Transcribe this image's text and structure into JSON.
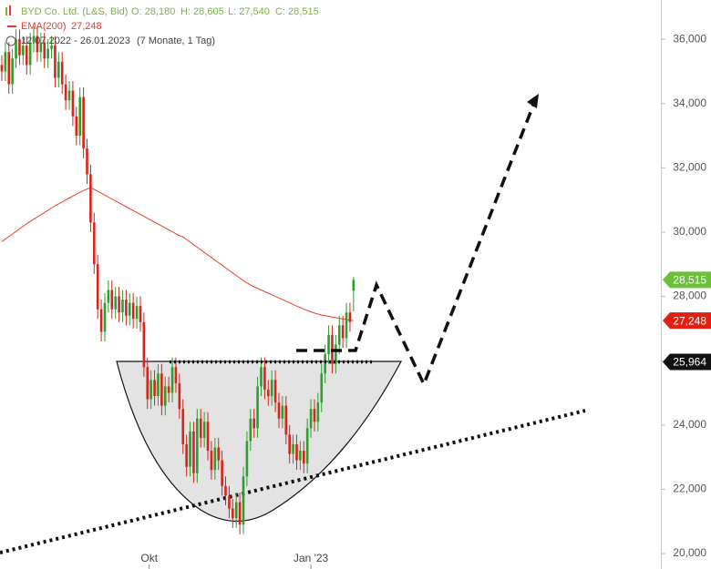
{
  "chart_data": {
    "type": "candlestick",
    "header": {
      "name": "BYD Co. Ltd. (L&S, Bid)",
      "ohlc_labels": [
        "O: 28,180",
        "H: 28,605",
        "L: 27,540",
        "C: 28,515"
      ],
      "ema_name": "EMA(200)",
      "ema_label": "27,248",
      "period": "12.07.2022 - 26.01.2023",
      "interval": "(7 Monate, 1 Tag)"
    },
    "up_color": "#2e9e2e",
    "down_color": "#d9241c",
    "ema_color": "#e8402a",
    "open": [
      35200,
      35000,
      35600,
      34600,
      35400,
      36000,
      35500,
      35800,
      35200,
      35900,
      36100,
      35600,
      35900,
      35400,
      35700,
      35800,
      34800,
      35300,
      34600,
      34100,
      34400,
      33600,
      33000,
      34200,
      32600,
      31800,
      30300,
      29000,
      27600,
      26900,
      27800,
      28200,
      27600,
      28000,
      27500,
      27900,
      27400,
      27800,
      27300,
      27700,
      27200,
      25800,
      24800,
      25400,
      24900,
      25600,
      24600,
      25200,
      25000,
      25800,
      25300,
      24500,
      23400,
      22700,
      23800,
      22500,
      24200,
      23600,
      24100,
      23200,
      22600,
      23300,
      22900,
      22100,
      21800,
      21400,
      21100,
      21600,
      20900,
      22400,
      23500,
      24200,
      23900,
      25200,
      25800,
      25100,
      24900,
      25400,
      24700,
      24200,
      24600,
      23700,
      23100,
      23400,
      22900,
      23200,
      22800,
      23900,
      24500,
      24100,
      24700,
      25600,
      26200,
      26800,
      25900,
      26500,
      27100,
      26700,
      27500,
      28180
    ],
    "high": [
      35500,
      35900,
      35900,
      35700,
      36300,
      36300,
      36100,
      36100,
      36200,
      36400,
      36400,
      36200,
      36200,
      36000,
      36100,
      36100,
      35600,
      35600,
      34900,
      34700,
      34700,
      33900,
      34500,
      34500,
      32900,
      32100,
      30600,
      29300,
      27900,
      28100,
      28500,
      28500,
      28300,
      28300,
      28200,
      28200,
      28100,
      28100,
      28000,
      28000,
      27500,
      26100,
      25700,
      25700,
      25900,
      25900,
      25500,
      25500,
      26100,
      26100,
      25600,
      24800,
      23700,
      24100,
      24100,
      24500,
      24500,
      24400,
      24400,
      23500,
      23600,
      23600,
      23200,
      22400,
      22100,
      21700,
      21900,
      21900,
      22700,
      23800,
      24500,
      24500,
      25500,
      26100,
      26100,
      25400,
      25700,
      25700,
      25000,
      24900,
      24900,
      24000,
      23700,
      23700,
      23500,
      23500,
      24200,
      24800,
      24800,
      25000,
      25900,
      26500,
      27100,
      27100,
      26800,
      27400,
      27400,
      27800,
      27800,
      28605
    ],
    "low": [
      34700,
      34700,
      34300,
      34300,
      35100,
      35200,
      35200,
      34900,
      34900,
      35600,
      35300,
      35300,
      35100,
      35100,
      35400,
      34500,
      34500,
      34300,
      33800,
      33800,
      33300,
      32700,
      32700,
      32300,
      31500,
      30000,
      28700,
      27300,
      26600,
      26600,
      27500,
      27300,
      27300,
      27200,
      27200,
      27100,
      27100,
      27000,
      27000,
      26900,
      25500,
      24500,
      24500,
      24600,
      24600,
      24300,
      24300,
      24700,
      24700,
      25000,
      24200,
      23100,
      22400,
      22400,
      22200,
      22200,
      23300,
      23300,
      22900,
      22300,
      22300,
      22600,
      21800,
      21500,
      21100,
      20800,
      20800,
      20600,
      20600,
      22100,
      23200,
      23600,
      23600,
      24900,
      24800,
      24600,
      24600,
      24400,
      23900,
      23900,
      23400,
      22800,
      22800,
      22600,
      22600,
      22500,
      22500,
      23600,
      23800,
      23800,
      24400,
      25300,
      25900,
      25600,
      25600,
      26200,
      26400,
      26400,
      26900,
      27540
    ],
    "close": [
      35000,
      35600,
      34600,
      35400,
      36000,
      35500,
      35800,
      35200,
      35900,
      36100,
      35600,
      35900,
      35400,
      35700,
      35800,
      34800,
      35300,
      34600,
      34100,
      34400,
      33600,
      33000,
      34200,
      32600,
      31800,
      30300,
      29000,
      27600,
      26900,
      27800,
      28200,
      27600,
      28000,
      27500,
      27900,
      27400,
      27800,
      27300,
      27700,
      27200,
      25800,
      24800,
      25400,
      24900,
      25600,
      24600,
      25200,
      25000,
      25800,
      25300,
      24500,
      23400,
      22700,
      23800,
      22500,
      24200,
      23600,
      24100,
      23200,
      22600,
      23300,
      22900,
      22100,
      21800,
      21400,
      21100,
      21600,
      20900,
      22400,
      23500,
      24200,
      23900,
      25200,
      25800,
      25100,
      24900,
      25400,
      24700,
      24200,
      24600,
      23700,
      23100,
      23400,
      22900,
      23200,
      22800,
      23900,
      24500,
      24100,
      24700,
      25600,
      26200,
      26800,
      25900,
      26500,
      27100,
      26700,
      27500,
      27200,
      28515
    ],
    "ema": [
      29700,
      29780,
      29860,
      29940,
      30020,
      30100,
      30180,
      30260,
      30330,
      30400,
      30470,
      30540,
      30610,
      30680,
      30750,
      30820,
      30880,
      30940,
      31000,
      31060,
      31120,
      31180,
      31240,
      31290,
      31340,
      31380,
      31330,
      31270,
      31210,
      31150,
      31090,
      31030,
      30970,
      30910,
      30850,
      30790,
      30730,
      30670,
      30610,
      30550,
      30490,
      30430,
      30370,
      30310,
      30250,
      30190,
      30130,
      30070,
      30010,
      29950,
      29890,
      29850,
      29770,
      29690,
      29610,
      29530,
      29450,
      29370,
      29290,
      29210,
      29130,
      29050,
      28970,
      28890,
      28810,
      28730,
      28650,
      28570,
      28490,
      28420,
      28360,
      28300,
      28250,
      28200,
      28150,
      28100,
      28050,
      28000,
      27950,
      27900,
      27850,
      27800,
      27750,
      27700,
      27650,
      27600,
      27560,
      27520,
      27480,
      27450,
      27420,
      27400,
      27380,
      27360,
      27340,
      27320,
      27300,
      27280,
      27260,
      27248
    ],
    "price_markers": [
      {
        "value": 28515,
        "label": "28,515",
        "color": "#6bbf3b"
      },
      {
        "value": 27248,
        "label": "27,248",
        "color": "#e3200f"
      },
      {
        "value": 25964,
        "label": "25,964",
        "color": "#111111"
      }
    ],
    "xlim": [
      -0.5,
      185.5
    ],
    "xticks": [
      {
        "value": 41.5,
        "label": "Okt"
      },
      {
        "value": 87,
        "label": "Jan '23"
      }
    ],
    "ylim": [
      19520,
      37220
    ],
    "yticks": [
      {
        "value": 20000,
        "label": "20,000"
      },
      {
        "value": 22000,
        "label": "22,000"
      },
      {
        "value": 24000,
        "label": "24,000"
      },
      {
        "value": 26000,
        "label": "26,000"
      },
      {
        "value": 28000,
        "label": "28,000"
      },
      {
        "value": 30000,
        "label": "30,000"
      },
      {
        "value": 32000,
        "label": "32,000"
      },
      {
        "value": 34000,
        "label": "34,000"
      },
      {
        "value": 36000,
        "label": "36,000"
      }
    ]
  }
}
